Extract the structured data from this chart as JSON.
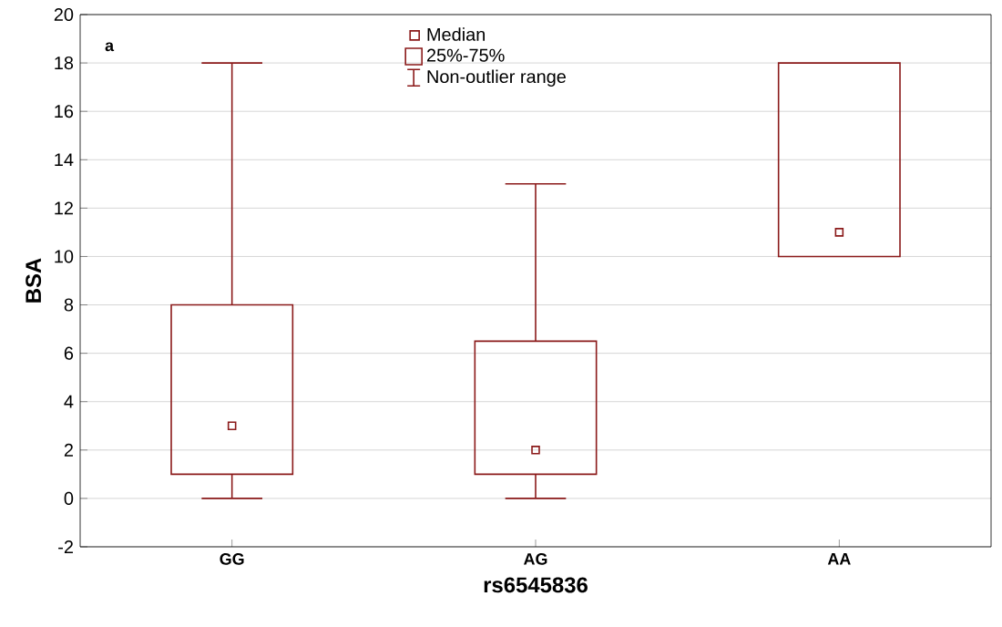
{
  "chart_data": {
    "type": "box",
    "xlabel": "rs6545836",
    "ylabel": "BSA",
    "categories": [
      "GG",
      "AG",
      "AA"
    ],
    "boxes": [
      {
        "low": 0,
        "q1": 1,
        "median": 3,
        "q3": 8,
        "high": 18
      },
      {
        "low": 0,
        "q1": 1,
        "median": 2,
        "q3": 6.5,
        "high": 13
      },
      {
        "low": 10,
        "q1": 10,
        "median": 11,
        "q3": 18,
        "high": 18
      }
    ],
    "color": "#8b1a1a",
    "ylim": [
      -2,
      20
    ],
    "yticks": [
      -2,
      0,
      2,
      4,
      6,
      8,
      10,
      12,
      14,
      16,
      18,
      20
    ],
    "grid": "y",
    "marker": "square",
    "annotations": [
      "a",
      "Median",
      "25%-75%",
      "Non-outlier range"
    ]
  }
}
